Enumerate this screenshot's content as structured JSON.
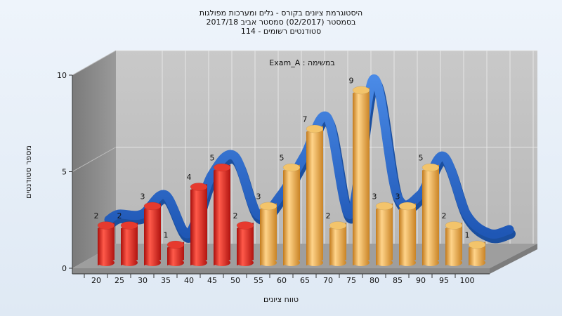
{
  "titles": {
    "line1": "היסטוגרמת ציונים בקורס - גלים ומערכות מפולגות",
    "line2": "בסמסטר  (02/2017)  סמסטר אביב 2017/18",
    "line3": "סטודנטים רשומים - 114"
  },
  "chart_data": {
    "type": "bar",
    "annotation": "Exam_A : במשימה",
    "xlabel": "טווח ציונים",
    "ylabel": "מספר סטודנטים",
    "ylim": [
      0,
      10
    ],
    "yticks": [
      0,
      5,
      10
    ],
    "categories": [
      "20",
      "25",
      "30",
      "35",
      "40",
      "45",
      "50",
      "55",
      "60",
      "65",
      "70",
      "75",
      "80",
      "85",
      "90",
      "95",
      "100"
    ],
    "values": [
      2,
      2,
      3,
      1,
      4,
      5,
      2,
      3,
      5,
      7,
      2,
      9,
      3,
      3,
      5,
      2,
      1
    ],
    "bar_colors_by_range": [
      {
        "from": "20",
        "to": "50",
        "color": "#d9201b"
      },
      {
        "from": "55",
        "to": "100",
        "color": "#e8a23a"
      }
    ],
    "curve_color": "#2f6fd0",
    "grid": true
  }
}
